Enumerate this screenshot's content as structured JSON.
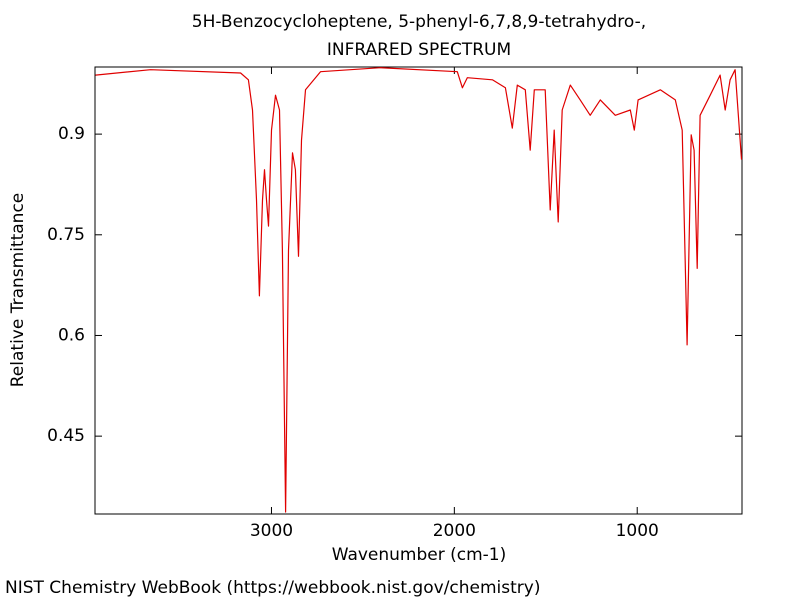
{
  "chart_data": {
    "type": "line",
    "title": "5H-Benzocycloheptene, 5-phenyl-6,7,8,9-tetrahydro-,",
    "subtitle": "INFRARED SPECTRUM",
    "x_label": "Wavenumber (cm-1)",
    "y_label": "Relative Transmittance",
    "footer": "NIST Chemistry WebBook (https://webbook.nist.gov/chemistry)",
    "color": "#e00000",
    "xlim": [
      3965,
      427
    ],
    "ylim": [
      0.334,
      1.0
    ],
    "xticks": [
      3000,
      2000,
      1000
    ],
    "yticks": [
      0.45,
      0.6,
      0.75,
      0.9
    ],
    "x": [
      3962,
      3661,
      3169,
      3126,
      3104,
      3082,
      3066,
      3049,
      3038,
      3027,
      3016,
      3000,
      2978,
      2956,
      2940,
      2923,
      2907,
      2885,
      2869,
      2852,
      2836,
      2814,
      2732,
      2404,
      1984,
      1956,
      1929,
      1792,
      1721,
      1683,
      1656,
      1612,
      1585,
      1563,
      1503,
      1476,
      1454,
      1432,
      1410,
      1366,
      1312,
      1257,
      1202,
      1120,
      1038,
      1016,
      995,
      874,
      792,
      754,
      727,
      705,
      689,
      672,
      656,
      601,
      547,
      519,
      492,
      465,
      430
    ],
    "values": [
      0.988,
      0.996,
      0.991,
      0.981,
      0.936,
      0.802,
      0.659,
      0.802,
      0.847,
      0.802,
      0.763,
      0.906,
      0.958,
      0.936,
      0.727,
      0.337,
      0.727,
      0.872,
      0.847,
      0.718,
      0.891,
      0.966,
      0.993,
      0.999,
      0.993,
      0.969,
      0.984,
      0.981,
      0.969,
      0.909,
      0.973,
      0.966,
      0.876,
      0.966,
      0.966,
      0.787,
      0.906,
      0.769,
      0.936,
      0.973,
      0.951,
      0.928,
      0.951,
      0.928,
      0.936,
      0.906,
      0.951,
      0.966,
      0.951,
      0.906,
      0.586,
      0.899,
      0.876,
      0.7,
      0.928,
      0.958,
      0.988,
      0.936,
      0.981,
      0.996,
      0.862
    ]
  }
}
